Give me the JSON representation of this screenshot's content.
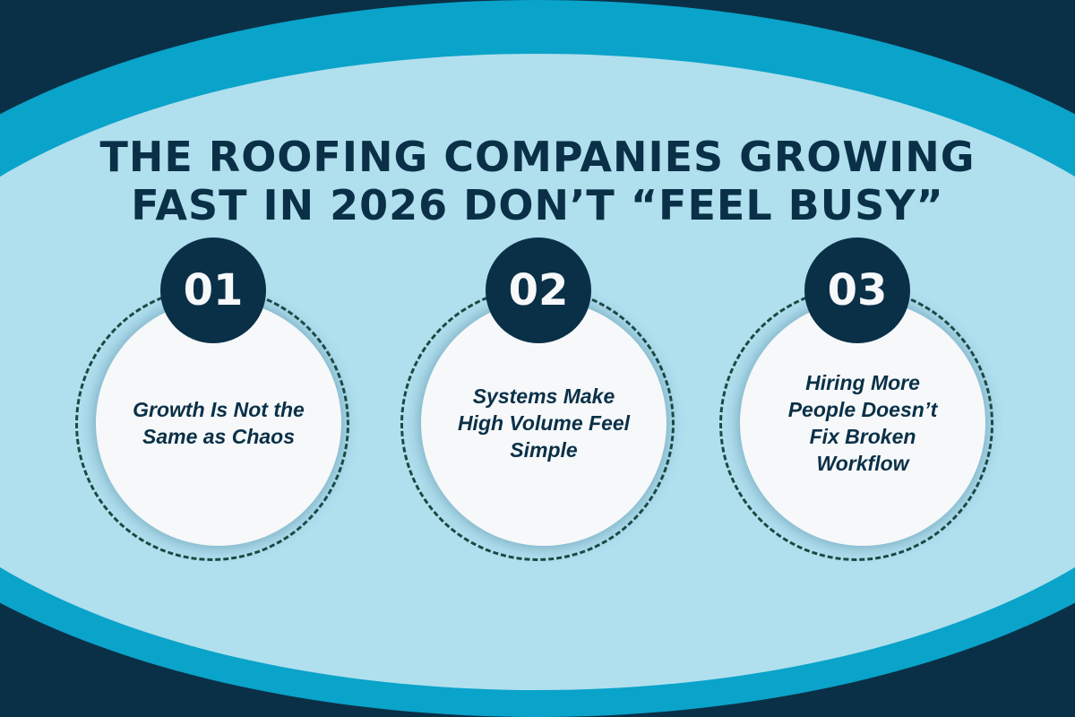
{
  "title": {
    "line1": "THE ROOFING COMPANIES GROWING",
    "line2": "FAST IN 2026 DON’T “FEEL BUSY”"
  },
  "items": [
    {
      "number": "01",
      "text": "Growth Is Not the Same as Chaos"
    },
    {
      "number": "02",
      "text": "Systems Make High Volume Feel Simple"
    },
    {
      "number": "03",
      "text": "Hiring More People Doesn’t Fix Broken Workflow"
    }
  ],
  "colors": {
    "navy": "#0a3047",
    "teal": "#0aa3c9",
    "light_blue": "#b0dfee",
    "card": "#f6f8fa",
    "dash": "#1b4a44"
  }
}
